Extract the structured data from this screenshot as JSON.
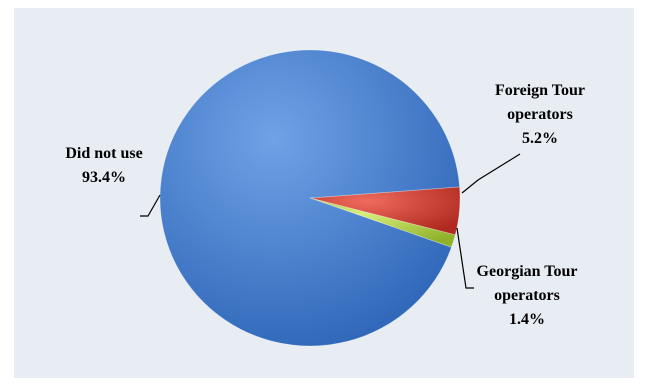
{
  "chart_data": {
    "type": "pie",
    "title": "",
    "slices": [
      {
        "label_lines": [
          "Foreign Tour",
          "operators"
        ],
        "value": 5.2,
        "value_text": "5.2%",
        "color": "#c9362b"
      },
      {
        "label_lines": [
          "Georgian Tour",
          "operators"
        ],
        "value": 1.4,
        "value_text": "1.4%",
        "color": "#a8c83c"
      },
      {
        "label_lines": [
          "Did not use"
        ],
        "value": 93.4,
        "value_text": "93.4%",
        "color": "#3f78c6"
      }
    ],
    "legend": "none",
    "data_labels": "outside-with-leader-lines"
  }
}
